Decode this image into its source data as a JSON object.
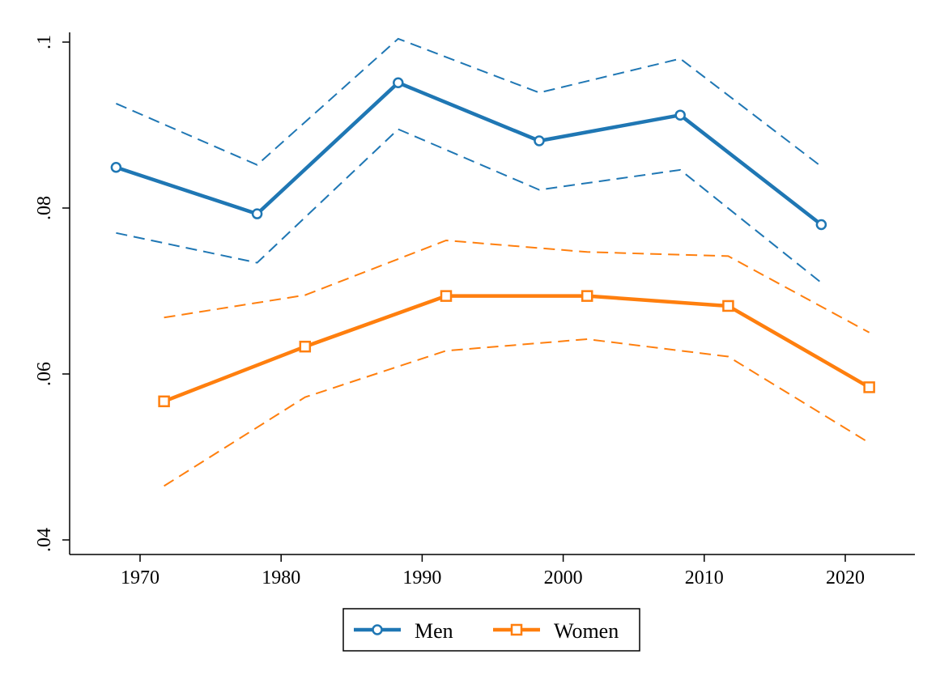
{
  "chart_data": {
    "type": "line",
    "title": "",
    "xlabel": "",
    "ylabel": "",
    "xlim": [
      1963,
      2027
    ],
    "ylim": [
      0.04,
      0.1
    ],
    "x_ticks": [
      1970,
      1980,
      1990,
      2000,
      2010,
      2020
    ],
    "x_tick_labels": [
      "1970",
      "1980",
      "1990",
      "2000",
      "2010",
      "2020"
    ],
    "y_ticks": [
      0.04,
      0.06,
      0.08,
      0.1
    ],
    "y_tick_labels": [
      ".04",
      ".06",
      ".08",
      ".1"
    ],
    "grid": false,
    "legend_position": "bottom",
    "series": [
      {
        "name": "Men",
        "color": "#1f77b4",
        "marker": "circle",
        "x": [
          1968.3,
          1978.3,
          1988.3,
          1998.3,
          2008.3,
          2018.3
        ],
        "values": [
          0.0849,
          0.0793,
          0.0951,
          0.0881,
          0.0912,
          0.078
        ],
        "ci_upper": [
          0.0926,
          0.0852,
          0.1004,
          0.0939,
          0.098,
          0.085
        ],
        "ci_lower": [
          0.077,
          0.0734,
          0.0895,
          0.0822,
          0.0846,
          0.071
        ]
      },
      {
        "name": "Women",
        "color": "#ff7f0e",
        "marker": "square",
        "x": [
          1971.7,
          1981.7,
          1991.7,
          2001.7,
          2011.7,
          2021.7
        ],
        "values": [
          0.0567,
          0.0633,
          0.0694,
          0.0694,
          0.0682,
          0.0584
        ],
        "ci_upper": [
          0.0668,
          0.0695,
          0.0761,
          0.0747,
          0.0742,
          0.065
        ],
        "ci_lower": [
          0.0465,
          0.0572,
          0.0628,
          0.0642,
          0.0621,
          0.0517
        ]
      }
    ]
  }
}
